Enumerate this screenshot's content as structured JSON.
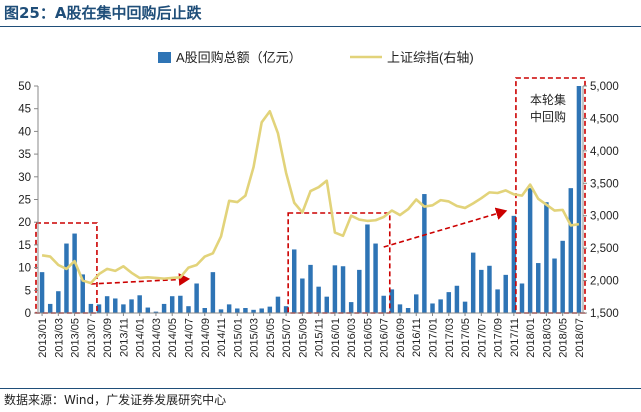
{
  "header": {
    "title": "图25：A股在集中回购后止跌"
  },
  "footer": {
    "source": "数据来源：Wind，广发证券发展研究中心"
  },
  "annotation": {
    "line1": "本轮集",
    "line2": "中回购"
  },
  "colors": {
    "bar": "#2e74b5",
    "line": "#e2d37a",
    "box": "#cc0000",
    "arrow": "#cc0000"
  },
  "chart_data": {
    "type": "bar+line",
    "legend_position": "top",
    "grid": false,
    "x": [
      "2013/01",
      "2013/02",
      "2013/03",
      "2013/04",
      "2013/05",
      "2013/06",
      "2013/07",
      "2013/08",
      "2013/09",
      "2013/10",
      "2013/11",
      "2013/12",
      "2014/01",
      "2014/02",
      "2014/03",
      "2014/04",
      "2014/05",
      "2014/06",
      "2014/07",
      "2014/08",
      "2014/09",
      "2014/10",
      "2014/11",
      "2014/12",
      "2015/01",
      "2015/02",
      "2015/03",
      "2015/04",
      "2015/05",
      "2015/06",
      "2015/07",
      "2015/08",
      "2015/09",
      "2015/10",
      "2015/11",
      "2015/12",
      "2016/01",
      "2016/02",
      "2016/03",
      "2016/04",
      "2016/05",
      "2016/06",
      "2016/07",
      "2016/08",
      "2016/09",
      "2016/10",
      "2016/11",
      "2016/12",
      "2017/01",
      "2017/02",
      "2017/03",
      "2017/04",
      "2017/05",
      "2017/06",
      "2017/07",
      "2017/08",
      "2017/09",
      "2017/10",
      "2017/11",
      "2017/12",
      "2018/01",
      "2018/02",
      "2018/03",
      "2018/04",
      "2018/05",
      "2018/06",
      "2018/07"
    ],
    "x_tick_labels": [
      "2013/01",
      "2013/03",
      "2013/05",
      "2013/07",
      "2013/09",
      "2013/11",
      "2014/01",
      "2014/03",
      "2014/05",
      "2014/07",
      "2014/09",
      "2014/11",
      "2015/01",
      "2015/03",
      "2015/05",
      "2015/07",
      "2015/09",
      "2015/11",
      "2016/01",
      "2016/03",
      "2016/05",
      "2016/07",
      "2016/09",
      "2016/11",
      "2017/01",
      "2017/03",
      "2017/05",
      "2017/07",
      "2017/09",
      "2017/11",
      "2018/01",
      "2018/03",
      "2018/05",
      "2018/07"
    ],
    "series": [
      {
        "name": "A股回购总额（亿元）",
        "type": "bar",
        "axis": "left",
        "values": [
          9,
          2,
          4.8,
          15.3,
          17.5,
          8.5,
          2,
          1.9,
          3.7,
          3.2,
          1.9,
          3,
          3.9,
          1.2,
          0.3,
          2,
          3.7,
          3.8,
          1.5,
          6.5,
          1.1,
          9,
          0.8,
          1.9,
          1,
          1.1,
          0.7,
          1,
          1.4,
          3.6,
          1.5,
          14,
          7.6,
          10.6,
          5.8,
          3.6,
          10.5,
          10.3,
          2.4,
          9.5,
          19.5,
          15.3,
          3.8,
          5.2,
          1.9,
          1.1,
          4.1,
          26.2,
          2.1,
          3,
          4.6,
          6,
          2.5,
          13.3,
          9.5,
          10.4,
          5.2,
          8.4,
          21.4,
          6.5,
          27.5,
          11,
          24.4,
          12,
          15.9,
          27.5,
          50
        ]
      },
      {
        "name": "上证综指(右轴)",
        "type": "line",
        "axis": "right",
        "values": [
          2390,
          2370,
          2240,
          2180,
          2300,
          2000,
          1960,
          2100,
          2180,
          2150,
          2220,
          2120,
          2040,
          2050,
          2040,
          2030,
          2040,
          2050,
          2200,
          2240,
          2370,
          2420,
          2680,
          3230,
          3210,
          3310,
          3750,
          4440,
          4610,
          4270,
          3660,
          3200,
          3050,
          3380,
          3440,
          3540,
          2740,
          2690,
          3000,
          2940,
          2920,
          2930,
          2980,
          3080,
          3010,
          3100,
          3250,
          3140,
          3160,
          3240,
          3220,
          3150,
          3120,
          3190,
          3270,
          3360,
          3350,
          3390,
          3330,
          3310,
          3480,
          3260,
          3170,
          3080,
          3090,
          2850,
          2870
        ]
      }
    ],
    "y_left": {
      "min": 0,
      "max": 50,
      "ticks": [
        0,
        5,
        10,
        15,
        20,
        25,
        30,
        35,
        40,
        45,
        50
      ]
    },
    "y_right": {
      "min": 1500,
      "max": 5000,
      "ticks": [
        "1,500",
        "2,000",
        "2,500",
        "3,000",
        "3,500",
        "4,000",
        "4,500",
        "5,000"
      ]
    },
    "highlight_boxes": [
      {
        "from": "2013/01",
        "to": "2013/07"
      },
      {
        "from": "2015/08",
        "to": "2016/07"
      },
      {
        "from": "2017/12",
        "to": "2018/07"
      }
    ],
    "arrows": [
      {
        "from": "2013/07",
        "to": "2014/07"
      },
      {
        "from": "2016/07",
        "to": "2017/10"
      }
    ]
  }
}
